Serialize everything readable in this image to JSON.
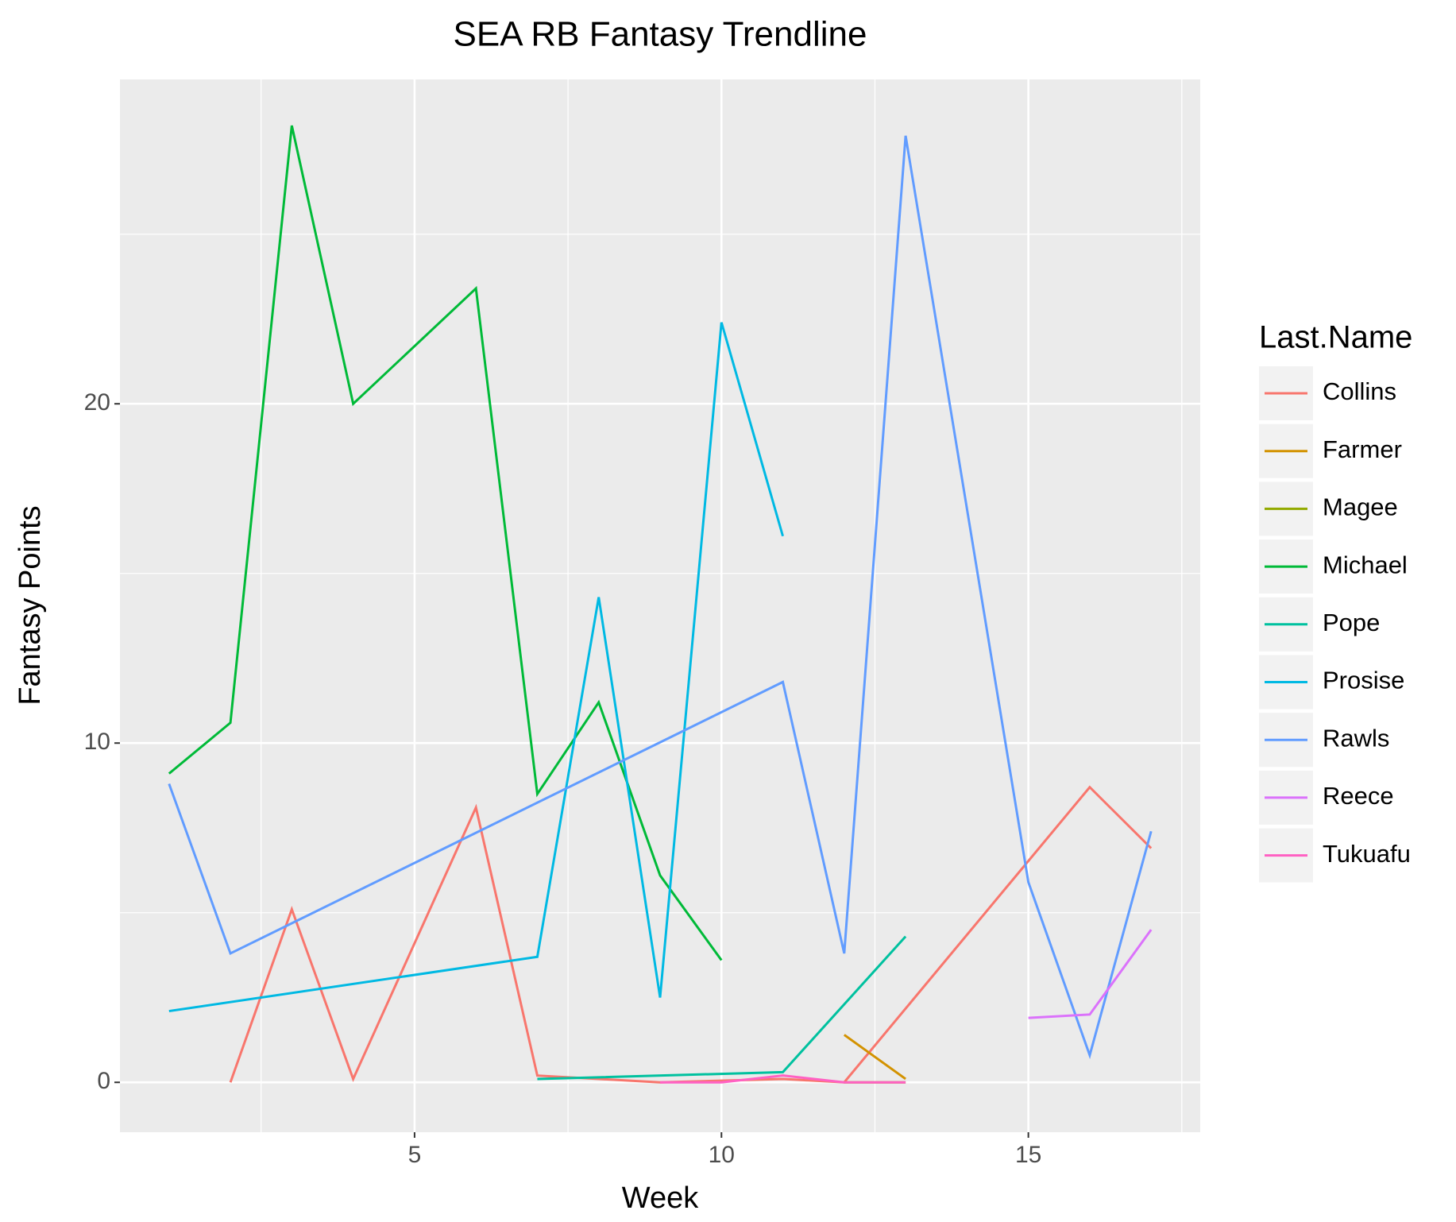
{
  "chart_data": {
    "type": "line",
    "title": "SEA RB Fantasy Trendline",
    "x_label": "Week",
    "y_label": "Fantasy Points",
    "legend_title": "Last.Name",
    "legend_position": "right",
    "grid": true,
    "xlim": [
      0.2,
      17.8
    ],
    "xticks": [
      5,
      10,
      15
    ],
    "ylim": [
      -1.47,
      29.56
    ],
    "yticks": [
      0,
      10,
      20
    ],
    "series": [
      {
        "name": "Collins",
        "color": "#F8766D",
        "x": [
          2,
          3,
          4,
          6,
          7,
          9,
          11,
          12,
          16,
          17
        ],
        "values": [
          0,
          5.1,
          0.1,
          8.1,
          0.2,
          0,
          0.1,
          0,
          8.7,
          6.9
        ]
      },
      {
        "name": "Farmer",
        "color": "#D39200",
        "x": [
          12,
          13
        ],
        "values": [
          1.4,
          0.1
        ]
      },
      {
        "name": "Magee",
        "color": "#93AA00",
        "x": [
          12,
          13
        ],
        "values": [
          0,
          0
        ]
      },
      {
        "name": "Michael",
        "color": "#00BA38",
        "x": [
          1,
          2,
          3,
          4,
          6,
          7,
          8,
          9,
          10
        ],
        "values": [
          9.1,
          10.6,
          28.2,
          20,
          23.4,
          8.5,
          11.2,
          6.1,
          3.6
        ]
      },
      {
        "name": "Pope",
        "color": "#00C19F",
        "x": [
          7,
          11,
          13
        ],
        "values": [
          0.1,
          0.3,
          4.3
        ]
      },
      {
        "name": "Prosise",
        "color": "#00B9E3",
        "x": [
          1,
          7,
          8,
          9,
          10,
          11
        ],
        "values": [
          2.1,
          3.7,
          14.3,
          2.5,
          22.4,
          16.1
        ]
      },
      {
        "name": "Rawls",
        "color": "#619CFF",
        "x": [
          1,
          2,
          11,
          12,
          13,
          15,
          16,
          17
        ],
        "values": [
          8.8,
          3.8,
          11.8,
          3.8,
          27.9,
          5.9,
          0.8,
          7.4
        ]
      },
      {
        "name": "Reece",
        "color": "#DB72FB",
        "x": [
          15,
          16,
          17
        ],
        "values": [
          1.9,
          2.0,
          4.5
        ]
      },
      {
        "name": "Tukuafu",
        "color": "#FF61C3",
        "x": [
          9,
          10,
          11,
          12,
          13
        ],
        "values": [
          0,
          0,
          0.2,
          0,
          0
        ]
      }
    ]
  }
}
